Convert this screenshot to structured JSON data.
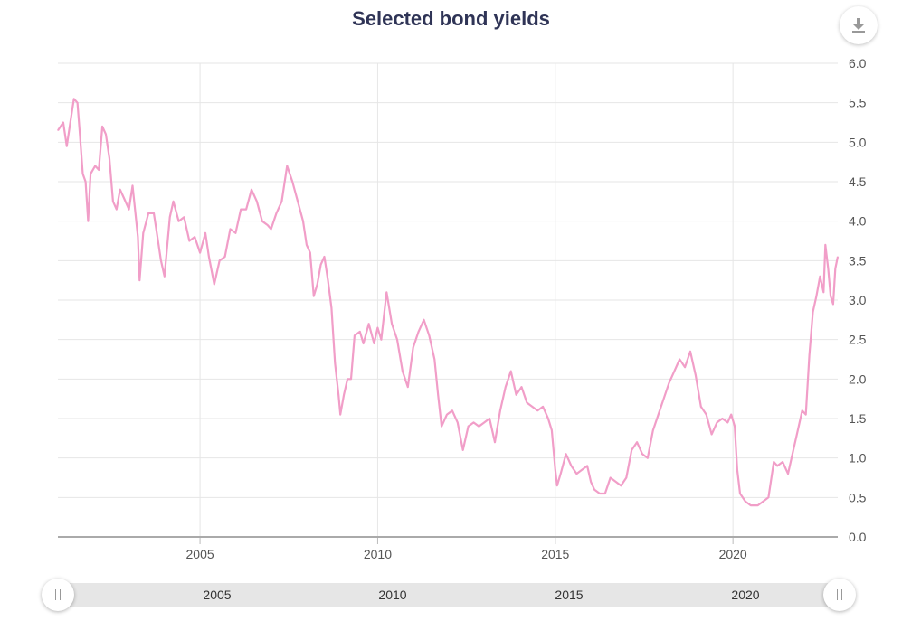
{
  "chart_data": {
    "type": "line",
    "title": "Selected bond yields",
    "xlabel": "",
    "ylabel": "",
    "xlim": [
      2001.0,
      2022.95
    ],
    "ylim": [
      0,
      6
    ],
    "y_ticks": [
      "0.0",
      "0.5",
      "1.0",
      "1.5",
      "2.0",
      "2.5",
      "3.0",
      "3.5",
      "4.0",
      "4.5",
      "5.0",
      "5.5",
      "6.0"
    ],
    "x_ticks": [
      "2005",
      "2010",
      "2015",
      "2020"
    ],
    "grid": true,
    "legend": "none",
    "series": [
      {
        "color": "#f19ec8",
        "points": [
          [
            2001.0,
            5.15
          ],
          [
            2001.15,
            5.25
          ],
          [
            2001.25,
            4.95
          ],
          [
            2001.35,
            5.25
          ],
          [
            2001.45,
            5.55
          ],
          [
            2001.55,
            5.5
          ],
          [
            2001.62,
            5.1
          ],
          [
            2001.7,
            4.6
          ],
          [
            2001.78,
            4.5
          ],
          [
            2001.85,
            4.0
          ],
          [
            2001.92,
            4.6
          ],
          [
            2002.05,
            4.7
          ],
          [
            2002.15,
            4.65
          ],
          [
            2002.25,
            5.2
          ],
          [
            2002.35,
            5.1
          ],
          [
            2002.45,
            4.8
          ],
          [
            2002.55,
            4.25
          ],
          [
            2002.65,
            4.15
          ],
          [
            2002.75,
            4.4
          ],
          [
            2002.85,
            4.3
          ],
          [
            2003.0,
            4.15
          ],
          [
            2003.1,
            4.45
          ],
          [
            2003.25,
            3.8
          ],
          [
            2003.3,
            3.25
          ],
          [
            2003.4,
            3.85
          ],
          [
            2003.55,
            4.1
          ],
          [
            2003.7,
            4.1
          ],
          [
            2003.8,
            3.8
          ],
          [
            2003.9,
            3.5
          ],
          [
            2004.0,
            3.3
          ],
          [
            2004.15,
            4.05
          ],
          [
            2004.25,
            4.25
          ],
          [
            2004.4,
            4.0
          ],
          [
            2004.55,
            4.05
          ],
          [
            2004.7,
            3.75
          ],
          [
            2004.85,
            3.8
          ],
          [
            2005.0,
            3.6
          ],
          [
            2005.15,
            3.85
          ],
          [
            2005.25,
            3.55
          ],
          [
            2005.4,
            3.2
          ],
          [
            2005.55,
            3.5
          ],
          [
            2005.7,
            3.55
          ],
          [
            2005.85,
            3.9
          ],
          [
            2006.0,
            3.85
          ],
          [
            2006.15,
            4.15
          ],
          [
            2006.3,
            4.15
          ],
          [
            2006.45,
            4.4
          ],
          [
            2006.6,
            4.25
          ],
          [
            2006.75,
            4.0
          ],
          [
            2006.9,
            3.95
          ],
          [
            2007.0,
            3.9
          ],
          [
            2007.15,
            4.1
          ],
          [
            2007.3,
            4.25
          ],
          [
            2007.45,
            4.7
          ],
          [
            2007.6,
            4.5
          ],
          [
            2007.75,
            4.25
          ],
          [
            2007.9,
            4.0
          ],
          [
            2008.0,
            3.7
          ],
          [
            2008.1,
            3.6
          ],
          [
            2008.2,
            3.05
          ],
          [
            2008.3,
            3.2
          ],
          [
            2008.4,
            3.45
          ],
          [
            2008.5,
            3.55
          ],
          [
            2008.6,
            3.25
          ],
          [
            2008.7,
            2.9
          ],
          [
            2008.8,
            2.2
          ],
          [
            2008.9,
            1.8
          ],
          [
            2008.95,
            1.55
          ],
          [
            2009.05,
            1.8
          ],
          [
            2009.15,
            2.0
          ],
          [
            2009.25,
            2.0
          ],
          [
            2009.35,
            2.55
          ],
          [
            2009.5,
            2.6
          ],
          [
            2009.6,
            2.45
          ],
          [
            2009.75,
            2.7
          ],
          [
            2009.9,
            2.45
          ],
          [
            2010.0,
            2.65
          ],
          [
            2010.1,
            2.5
          ],
          [
            2010.25,
            3.1
          ],
          [
            2010.4,
            2.7
          ],
          [
            2010.55,
            2.5
          ],
          [
            2010.7,
            2.1
          ],
          [
            2010.85,
            1.9
          ],
          [
            2011.0,
            2.4
          ],
          [
            2011.15,
            2.6
          ],
          [
            2011.3,
            2.75
          ],
          [
            2011.45,
            2.55
          ],
          [
            2011.6,
            2.25
          ],
          [
            2011.7,
            1.8
          ],
          [
            2011.8,
            1.4
          ],
          [
            2011.95,
            1.55
          ],
          [
            2012.1,
            1.6
          ],
          [
            2012.25,
            1.45
          ],
          [
            2012.4,
            1.1
          ],
          [
            2012.55,
            1.4
          ],
          [
            2012.7,
            1.45
          ],
          [
            2012.85,
            1.4
          ],
          [
            2013.0,
            1.45
          ],
          [
            2013.15,
            1.5
          ],
          [
            2013.3,
            1.2
          ],
          [
            2013.45,
            1.6
          ],
          [
            2013.6,
            1.9
          ],
          [
            2013.75,
            2.1
          ],
          [
            2013.9,
            1.8
          ],
          [
            2014.05,
            1.9
          ],
          [
            2014.2,
            1.7
          ],
          [
            2014.35,
            1.65
          ],
          [
            2014.5,
            1.6
          ],
          [
            2014.65,
            1.65
          ],
          [
            2014.8,
            1.5
          ],
          [
            2014.9,
            1.35
          ],
          [
            2015.0,
            0.85
          ],
          [
            2015.05,
            0.65
          ],
          [
            2015.15,
            0.8
          ],
          [
            2015.3,
            1.05
          ],
          [
            2015.45,
            0.9
          ],
          [
            2015.6,
            0.8
          ],
          [
            2015.75,
            0.85
          ],
          [
            2015.9,
            0.9
          ],
          [
            2016.0,
            0.7
          ],
          [
            2016.1,
            0.6
          ],
          [
            2016.25,
            0.55
          ],
          [
            2016.4,
            0.55
          ],
          [
            2016.55,
            0.75
          ],
          [
            2016.7,
            0.7
          ],
          [
            2016.85,
            0.65
          ],
          [
            2017.0,
            0.75
          ],
          [
            2017.15,
            1.1
          ],
          [
            2017.3,
            1.2
          ],
          [
            2017.45,
            1.05
          ],
          [
            2017.6,
            1.0
          ],
          [
            2017.75,
            1.35
          ],
          [
            2017.9,
            1.55
          ],
          [
            2018.05,
            1.75
          ],
          [
            2018.2,
            1.95
          ],
          [
            2018.35,
            2.1
          ],
          [
            2018.5,
            2.25
          ],
          [
            2018.65,
            2.15
          ],
          [
            2018.8,
            2.35
          ],
          [
            2018.95,
            2.05
          ],
          [
            2019.1,
            1.65
          ],
          [
            2019.25,
            1.55
          ],
          [
            2019.4,
            1.3
          ],
          [
            2019.55,
            1.45
          ],
          [
            2019.7,
            1.5
          ],
          [
            2019.85,
            1.45
          ],
          [
            2019.95,
            1.55
          ],
          [
            2020.05,
            1.4
          ],
          [
            2020.12,
            0.85
          ],
          [
            2020.2,
            0.55
          ],
          [
            2020.35,
            0.45
          ],
          [
            2020.5,
            0.4
          ],
          [
            2020.7,
            0.4
          ],
          [
            2020.85,
            0.45
          ],
          [
            2021.0,
            0.5
          ],
          [
            2021.15,
            0.95
          ],
          [
            2021.25,
            0.9
          ],
          [
            2021.4,
            0.95
          ],
          [
            2021.55,
            0.8
          ],
          [
            2021.7,
            1.1
          ],
          [
            2021.85,
            1.4
          ],
          [
            2021.95,
            1.6
          ],
          [
            2022.05,
            1.55
          ],
          [
            2022.15,
            2.3
          ],
          [
            2022.25,
            2.85
          ],
          [
            2022.35,
            3.05
          ],
          [
            2022.45,
            3.3
          ],
          [
            2022.55,
            3.1
          ],
          [
            2022.6,
            3.7
          ],
          [
            2022.68,
            3.4
          ],
          [
            2022.75,
            3.05
          ],
          [
            2022.82,
            2.95
          ],
          [
            2022.88,
            3.4
          ],
          [
            2022.95,
            3.55
          ]
        ]
      }
    ]
  },
  "navigator": {
    "labels": [
      "2005",
      "2010",
      "2015",
      "2020"
    ]
  },
  "icons": {
    "download": "download-icon",
    "handle": "drag-handle-icon"
  }
}
